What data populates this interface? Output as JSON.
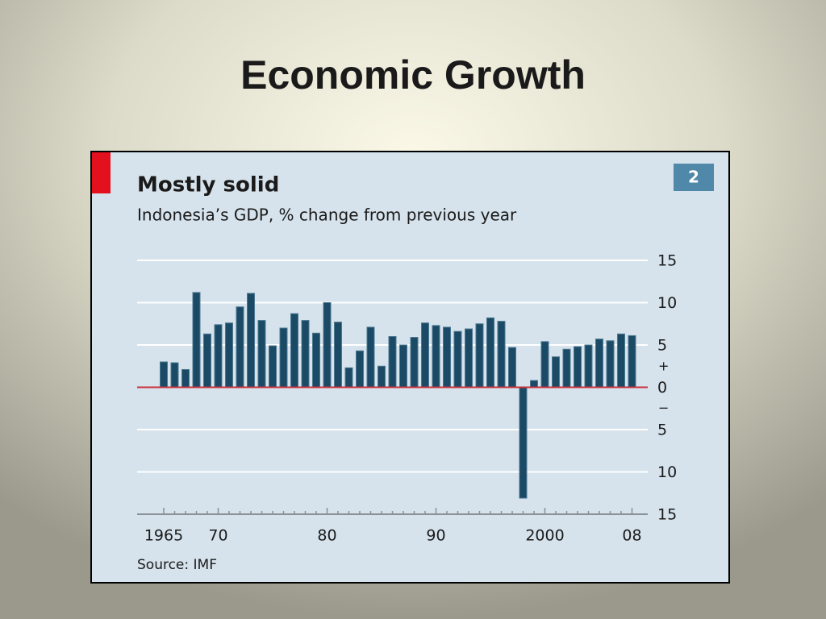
{
  "slide_title": "Economic Growth",
  "chart_data": {
    "type": "bar",
    "title": "Mostly solid",
    "subtitle": "Indonesia’s GDP, % change from previous year",
    "badge": "2",
    "source": "Source: IMF",
    "categories": [
      "1965",
      null,
      null,
      null,
      null,
      "70",
      null,
      null,
      null,
      null,
      null,
      null,
      null,
      null,
      null,
      "80",
      null,
      null,
      null,
      null,
      null,
      null,
      null,
      null,
      null,
      "90",
      null,
      null,
      null,
      null,
      null,
      null,
      null,
      null,
      null,
      "2000",
      null,
      null,
      null,
      null,
      null,
      null,
      null,
      "08"
    ],
    "values": [
      3.0,
      2.9,
      2.1,
      11.2,
      6.3,
      7.4,
      7.6,
      9.5,
      11.1,
      7.9,
      4.9,
      7.0,
      8.7,
      7.9,
      6.4,
      10.0,
      7.7,
      2.3,
      4.3,
      7.1,
      2.5,
      6.0,
      5.0,
      5.9,
      7.6,
      7.3,
      7.1,
      6.6,
      6.9,
      7.5,
      8.2,
      7.8,
      4.7,
      -13.1,
      0.8,
      5.4,
      3.6,
      4.5,
      4.8,
      5.0,
      5.7,
      5.5,
      6.3,
      6.1
    ],
    "color": "#1b4a66",
    "zero_line_color": "#c8323c",
    "ylim": [
      -15,
      15
    ],
    "yticks": [
      15,
      10,
      5,
      0,
      {
        "value": -5,
        "label": "5"
      },
      {
        "value": -10,
        "label": "10"
      },
      {
        "value": -15,
        "label": "15"
      }
    ],
    "sign_labels": [
      "+",
      "−"
    ],
    "grid": true
  }
}
